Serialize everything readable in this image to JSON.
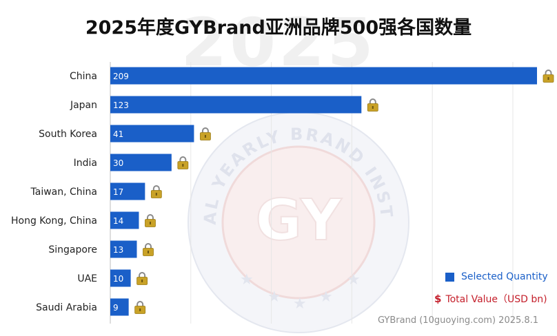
{
  "page": {
    "watermark_year": "2025",
    "seal_text": "GLOBAL YEARLY BRAND INSTITUTE",
    "seal_logo": "GY",
    "source_note": "GYBrand (10guoying.com)    2025.8.1"
  },
  "legend": {
    "quantity_label": "Selected Quantity",
    "value_symbol": "$",
    "value_label": "Total Value（USD bn)"
  },
  "colors": {
    "bar": "#1a5fc8",
    "value_legend": "#c41e2a",
    "grid": "#e6e6e6",
    "lock": "#c9a227"
  },
  "icons": {
    "bar_end": "lock-icon",
    "legend_quantity": "square-swatch"
  },
  "chart_data": {
    "type": "bar",
    "orientation": "horizontal",
    "title": "2025年度GYBrand亚洲品牌500强各国数量",
    "xlabel": "",
    "ylabel": "",
    "xlim": [
      0,
      209
    ],
    "grid": true,
    "legend_position": "bottom-right",
    "categories": [
      "China",
      "Japan",
      "South Korea",
      "India",
      "Taiwan, China",
      "Hong Kong, China",
      "Singapore",
      "UAE",
      "Saudi Arabia"
    ],
    "series": [
      {
        "name": "Selected Quantity",
        "values": [
          209,
          123,
          41,
          30,
          17,
          14,
          13,
          10,
          9
        ]
      }
    ]
  }
}
